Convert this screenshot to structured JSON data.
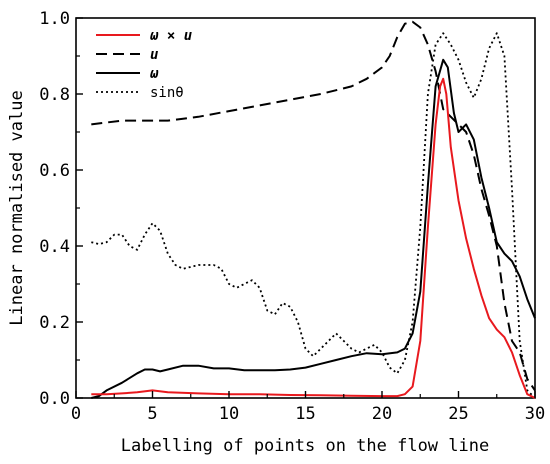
{
  "chart_data": {
    "type": "line",
    "xlabel": "Labelling of points on the flow line",
    "ylabel": "Linear normalised value",
    "xlim": [
      0,
      30
    ],
    "ylim": [
      0,
      1.0
    ],
    "xticks": [
      "0",
      "5",
      "10",
      "15",
      "20",
      "25",
      "30"
    ],
    "yticks": [
      "0.0",
      "0.2",
      "0.4",
      "0.6",
      "0.8",
      "1.0"
    ],
    "grid": false,
    "legend_position": "top-left",
    "series": [
      {
        "name": "ω × u",
        "color": "#e8191e",
        "style": "solid",
        "x": [
          1,
          2,
          3,
          4,
          5,
          6,
          8,
          10,
          12,
          14,
          16,
          18,
          20,
          21,
          21.5,
          22,
          22.5,
          23,
          23.5,
          23.8,
          24,
          24.2,
          24.5,
          25,
          25.5,
          26,
          26.5,
          27,
          27.5,
          28,
          28.5,
          29,
          29.5,
          30
        ],
        "values": [
          0.01,
          0.01,
          0.012,
          0.015,
          0.02,
          0.015,
          0.012,
          0.01,
          0.01,
          0.008,
          0.007,
          0.006,
          0.005,
          0.005,
          0.01,
          0.03,
          0.15,
          0.45,
          0.72,
          0.82,
          0.84,
          0.8,
          0.66,
          0.52,
          0.42,
          0.34,
          0.27,
          0.21,
          0.18,
          0.16,
          0.12,
          0.06,
          0.01,
          0.0
        ]
      },
      {
        "name": "u",
        "color": "#000000",
        "style": "dashed",
        "x": [
          1,
          2,
          3,
          4,
          5,
          6,
          7,
          8,
          10,
          12,
          14,
          16,
          18,
          19,
          20,
          20.5,
          21,
          21.5,
          22,
          22.5,
          23,
          23.5,
          24,
          24.5,
          25,
          25.5,
          26,
          26.5,
          27,
          27.5,
          28,
          28.5,
          29,
          29.5,
          30
        ],
        "values": [
          0.72,
          0.725,
          0.73,
          0.73,
          0.73,
          0.73,
          0.735,
          0.74,
          0.755,
          0.77,
          0.785,
          0.8,
          0.82,
          0.84,
          0.87,
          0.9,
          0.95,
          0.985,
          0.99,
          0.975,
          0.93,
          0.86,
          0.76,
          0.74,
          0.72,
          0.7,
          0.64,
          0.55,
          0.48,
          0.4,
          0.25,
          0.15,
          0.12,
          0.05,
          0.02
        ]
      },
      {
        "name": "ω",
        "color": "#000000",
        "style": "solid",
        "x": [
          1,
          1.5,
          2,
          3,
          4,
          4.5,
          5,
          5.5,
          6,
          7,
          8,
          9,
          10,
          11,
          12,
          13,
          14,
          15,
          16,
          17,
          18,
          19,
          20,
          21,
          21.5,
          22,
          22.5,
          23,
          23.5,
          24,
          24.3,
          24.7,
          25,
          25.5,
          26,
          26.5,
          27,
          27.5,
          28,
          28.5,
          29,
          29.5,
          30
        ],
        "values": [
          0.0,
          0.005,
          0.02,
          0.04,
          0.065,
          0.075,
          0.075,
          0.07,
          0.075,
          0.085,
          0.085,
          0.078,
          0.078,
          0.073,
          0.073,
          0.073,
          0.075,
          0.08,
          0.09,
          0.1,
          0.11,
          0.118,
          0.115,
          0.12,
          0.13,
          0.17,
          0.28,
          0.56,
          0.82,
          0.89,
          0.87,
          0.75,
          0.7,
          0.72,
          0.68,
          0.58,
          0.5,
          0.41,
          0.38,
          0.36,
          0.32,
          0.26,
          0.21
        ]
      },
      {
        "name": "sinθ",
        "color": "#000000",
        "style": "dotted",
        "x": [
          1,
          1.5,
          2,
          2.5,
          3,
          3.5,
          4,
          4.5,
          5,
          5.5,
          6,
          6.5,
          7,
          7.5,
          8,
          8.5,
          9,
          9.5,
          10,
          10.5,
          11,
          11.5,
          12,
          12.5,
          13,
          13.5,
          14,
          14.5,
          15,
          15.5,
          16,
          16.5,
          17,
          17.5,
          18,
          18.5,
          19,
          19.5,
          20,
          20.5,
          21,
          21.5,
          22,
          22.5,
          23,
          23.5,
          24,
          24.5,
          25,
          25.5,
          26,
          26.5,
          27,
          27.5,
          28,
          28.5,
          29,
          29.5,
          30
        ],
        "values": [
          0.41,
          0.405,
          0.41,
          0.43,
          0.43,
          0.4,
          0.39,
          0.43,
          0.46,
          0.44,
          0.38,
          0.35,
          0.34,
          0.345,
          0.35,
          0.35,
          0.35,
          0.34,
          0.3,
          0.29,
          0.3,
          0.31,
          0.29,
          0.23,
          0.22,
          0.25,
          0.24,
          0.2,
          0.13,
          0.11,
          0.13,
          0.15,
          0.17,
          0.15,
          0.13,
          0.12,
          0.13,
          0.14,
          0.12,
          0.08,
          0.065,
          0.1,
          0.2,
          0.45,
          0.8,
          0.93,
          0.96,
          0.93,
          0.89,
          0.83,
          0.79,
          0.84,
          0.92,
          0.96,
          0.9,
          0.55,
          0.15,
          0.02,
          0.0
        ]
      }
    ]
  }
}
